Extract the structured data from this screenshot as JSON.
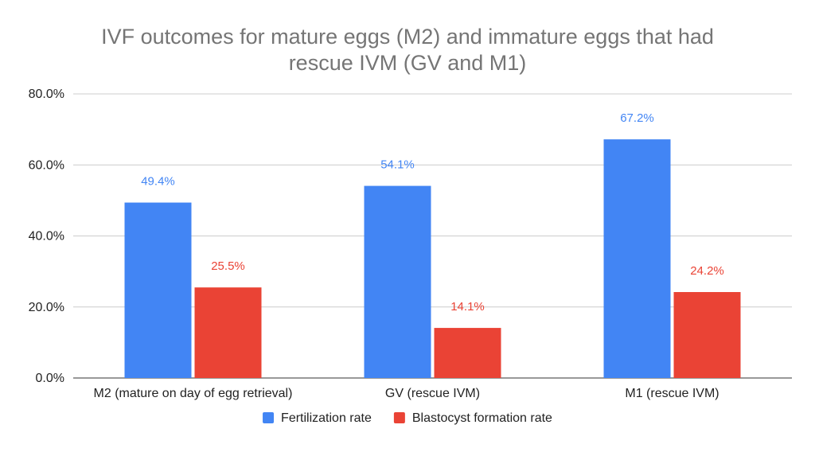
{
  "chart_data": {
    "type": "bar",
    "title_lines": [
      "IVF outcomes for mature eggs (M2) and immature eggs that had",
      "rescue IVM (GV and M1)"
    ],
    "xlabel": "",
    "ylabel": "",
    "categories": [
      "M2 (mature on day of egg retrieval)",
      "GV (rescue IVM)",
      "M1 (rescue IVM)"
    ],
    "series": [
      {
        "name": "Fertilization rate",
        "color": "#4285f4",
        "values": [
          49.4,
          54.1,
          67.2
        ],
        "labels": [
          "49.4%",
          "54.1%",
          "67.2%"
        ]
      },
      {
        "name": "Blastocyst formation rate",
        "color": "#ea4335",
        "values": [
          25.5,
          14.1,
          24.2
        ],
        "labels": [
          "25.5%",
          "14.1%",
          "24.2%"
        ]
      }
    ],
    "ylim": [
      0,
      80
    ],
    "yticks": [
      0,
      20,
      40,
      60,
      80
    ],
    "ytick_labels": [
      "0.0%",
      "20.0%",
      "40.0%",
      "60.0%",
      "80.0%"
    ],
    "grid": true,
    "legend_position": "bottom"
  }
}
